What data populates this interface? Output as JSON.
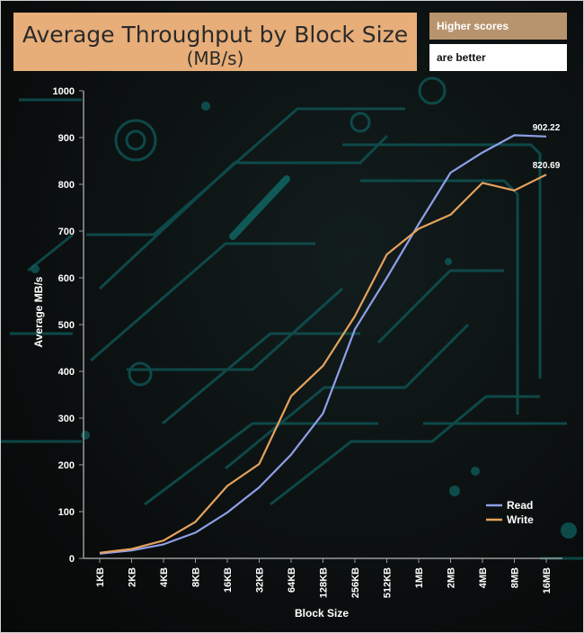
{
  "colors": {
    "read": "#8e9fe8",
    "write": "#e6a25e",
    "title_bg": "#e8ae79",
    "circuit": "#0f5a5a"
  },
  "header": {
    "title_line1": "Average Throughput by Block Size",
    "title_line2": "(MB/s)",
    "badge_top": "Higher scores",
    "badge_bottom": "are better"
  },
  "chart_data": {
    "type": "line",
    "title": "Average Throughput by Block Size (MB/s)",
    "xlabel": "Block Size",
    "ylabel": "Average MB/s",
    "ylim": [
      0,
      1000
    ],
    "yticks": [
      "0",
      "100",
      "200",
      "300",
      "400",
      "500",
      "600",
      "700",
      "800",
      "900",
      "1000"
    ],
    "categories": [
      "1KB",
      "2KB",
      "4KB",
      "8KB",
      "16KB",
      "32KB",
      "64KB",
      "128KB",
      "256KB",
      "512KB",
      "1MB",
      "2MB",
      "4MB",
      "8MB",
      "16MB"
    ],
    "series": [
      {
        "name": "Read",
        "values": [
          10,
          17,
          30,
          55,
          98,
          152,
          222,
          310,
          490,
          600,
          715,
          825,
          868,
          905,
          902.22
        ]
      },
      {
        "name": "Write",
        "values": [
          12,
          20,
          38,
          78,
          155,
          202,
          347,
          412,
          518,
          650,
          705,
          735,
          803,
          787,
          820.69
        ]
      }
    ],
    "data_labels": [
      {
        "series": "Read",
        "category": "16MB",
        "text": "902.22"
      },
      {
        "series": "Write",
        "category": "16MB",
        "text": "820.69"
      }
    ],
    "legend": {
      "position": "bottom-right",
      "entries": [
        "Read",
        "Write"
      ]
    },
    "grid": false
  }
}
